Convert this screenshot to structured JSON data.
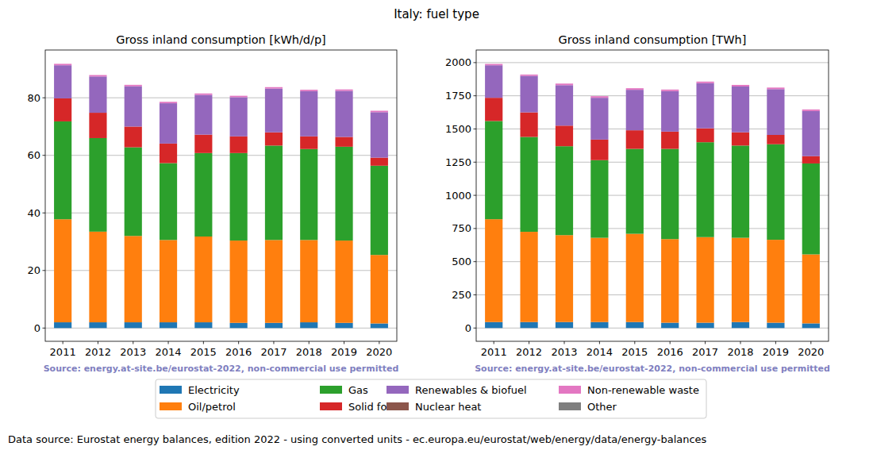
{
  "title": "Italy: fuel type",
  "footer": "Data source: Eurostat energy balances, edition 2022 - using converted units - ec.europa.eu/eurostat/web/energy/data/energy-balances",
  "chart_data": [
    {
      "type": "bar",
      "title": "Gross inland consumption [kWh/d/p]",
      "stacked": true,
      "grid": true,
      "legend": "bottom",
      "annotations": [
        "Source: energy.at-site.be/eurostat-2022, non-commercial use permitted"
      ],
      "categories": [
        "2011",
        "2012",
        "2013",
        "2014",
        "2015",
        "2016",
        "2017",
        "2018",
        "2019",
        "2020"
      ],
      "ylim": [
        -4.6,
        96.6
      ],
      "yticks": [
        0,
        20,
        40,
        60,
        80
      ],
      "series": [
        {
          "name": "Electricity",
          "color": "#1f77b4",
          "values": [
            2,
            2,
            2,
            2,
            2,
            1.8,
            1.8,
            2,
            1.8,
            1.6
          ]
        },
        {
          "name": "Oil/petrol",
          "color": "#ff7f0e",
          "values": [
            35.8,
            31.5,
            30,
            28.6,
            29.8,
            28.6,
            28.8,
            28.6,
            28.6,
            23.8
          ]
        },
        {
          "name": "Gas",
          "color": "#2ca02c",
          "values": [
            34,
            32.5,
            30.8,
            26.7,
            29,
            30.4,
            32.8,
            31.6,
            32.6,
            31
          ]
        },
        {
          "name": "Solid fossil",
          "color": "#d62728",
          "values": [
            8,
            8.8,
            7.2,
            6.8,
            6.4,
            5.8,
            4.6,
            4.4,
            3.4,
            2.8
          ]
        },
        {
          "name": "Renewables & biofuel",
          "color": "#9467bd",
          "values": [
            11.5,
            12.6,
            14,
            14,
            13.8,
            13.6,
            15.2,
            15.7,
            16,
            15.8
          ]
        },
        {
          "name": "Nuclear heat",
          "color": "#8c564b",
          "values": [
            0,
            0,
            0,
            0,
            0,
            0,
            0,
            0,
            0,
            0
          ]
        },
        {
          "name": "Non-renewable waste",
          "color": "#e377c2",
          "values": [
            0.5,
            0.5,
            0.5,
            0.5,
            0.5,
            0.5,
            0.5,
            0.5,
            0.5,
            0.5
          ]
        },
        {
          "name": "Other",
          "color": "#7f7f7f",
          "values": [
            0,
            0,
            0,
            0,
            0,
            0,
            0,
            0,
            0,
            0
          ]
        }
      ]
    },
    {
      "type": "bar",
      "title": "Gross inland consumption [TWh]",
      "stacked": true,
      "grid": true,
      "annotations": [
        "Source: energy.at-site.be/eurostat-2022, non-commercial use permitted"
      ],
      "categories": [
        "2011",
        "2012",
        "2013",
        "2014",
        "2015",
        "2016",
        "2017",
        "2018",
        "2019",
        "2020"
      ],
      "ylim": [
        -100,
        2095
      ],
      "yticks": [
        0,
        250,
        500,
        750,
        1000,
        1250,
        1500,
        1750,
        2000
      ],
      "series": [
        {
          "name": "Electricity",
          "color": "#1f77b4",
          "values": [
            45,
            45,
            45,
            45,
            45,
            40,
            40,
            45,
            40,
            35
          ]
        },
        {
          "name": "Oil/petrol",
          "color": "#ff7f0e",
          "values": [
            775,
            680,
            655,
            635,
            665,
            630,
            645,
            635,
            625,
            520
          ]
        },
        {
          "name": "Gas",
          "color": "#2ca02c",
          "values": [
            740,
            715,
            670,
            585,
            640,
            680,
            715,
            695,
            720,
            685
          ]
        },
        {
          "name": "Solid fossil",
          "color": "#d62728",
          "values": [
            175,
            185,
            155,
            155,
            140,
            130,
            105,
            100,
            70,
            55
          ]
        },
        {
          "name": "Renewables & biofuel",
          "color": "#9467bd",
          "values": [
            245,
            275,
            305,
            315,
            305,
            305,
            340,
            345,
            345,
            340
          ]
        },
        {
          "name": "Nuclear heat",
          "color": "#8c564b",
          "values": [
            0,
            0,
            0,
            0,
            0,
            0,
            0,
            0,
            0,
            0
          ]
        },
        {
          "name": "Non-renewable waste",
          "color": "#e377c2",
          "values": [
            10,
            10,
            12,
            12,
            12,
            12,
            12,
            12,
            12,
            12
          ]
        },
        {
          "name": "Other",
          "color": "#7f7f7f",
          "values": [
            0,
            0,
            0,
            0,
            0,
            0,
            0,
            0,
            0,
            0
          ]
        }
      ]
    }
  ]
}
